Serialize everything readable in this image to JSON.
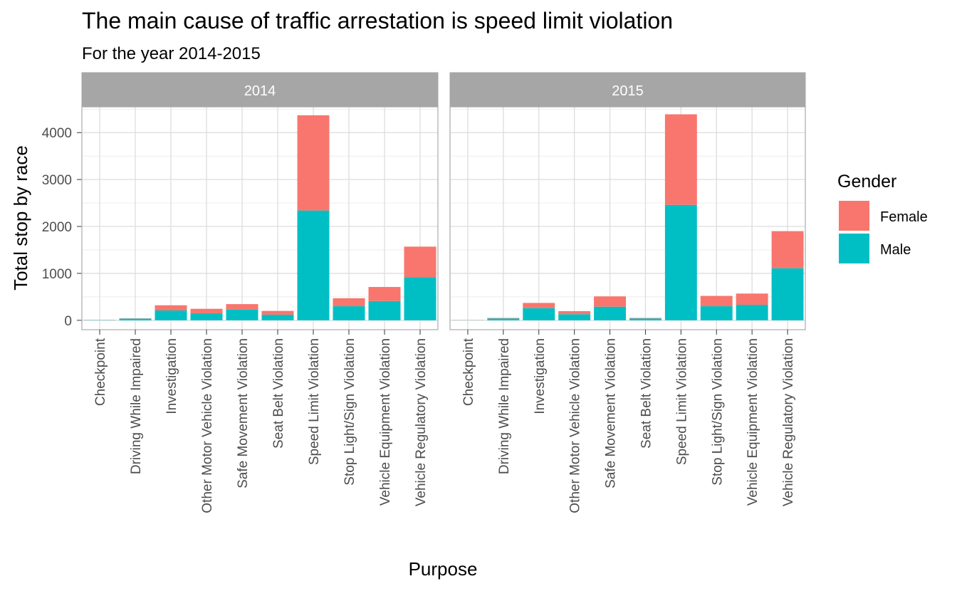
{
  "colors": {
    "female": "#F8766D",
    "male": "#00BFC4",
    "strip_bg": "#A6A6A6",
    "strip_text": "#ffffff",
    "grid_major": "#DDDDDD",
    "grid_minor": "#EEEEEE",
    "panel_border": "#B0B0B0",
    "text": "#000000",
    "axis_text": "#4D4D4D"
  },
  "chart_data": {
    "type": "bar",
    "stacked": true,
    "title": "The main cause of traffic arrestation is speed limit violation",
    "subtitle": "For the year 2014-2015",
    "xlabel": "Purpose",
    "ylabel": "Total stop by race",
    "ylim": [
      -200,
      4550
    ],
    "yticks": [
      0,
      1000,
      2000,
      3000,
      4000
    ],
    "grid": true,
    "legend": {
      "title": "Gender",
      "position": "right",
      "entries": [
        "Female",
        "Male"
      ]
    },
    "categories": [
      "Checkpoint",
      "Driving While Impaired",
      "Investigation",
      "Other Motor Vehicle Violation",
      "Safe Movement Violation",
      "Seat Belt Violation",
      "Speed Limit Violation",
      "Stop Light/Sign Violation",
      "Vehicle Equipment Violation",
      "Vehicle Regulatory Violation"
    ],
    "facets": [
      {
        "label": "2014",
        "series": [
          {
            "name": "Male",
            "values": [
              5,
              35,
              210,
              150,
              230,
              120,
              2340,
              300,
              410,
              920
            ]
          },
          {
            "name": "Female",
            "values": [
              2,
              5,
              110,
              95,
              115,
              80,
              2030,
              170,
              300,
              650
            ]
          }
        ]
      },
      {
        "label": "2015",
        "series": [
          {
            "name": "Male",
            "values": [
              3,
              40,
              260,
              130,
              290,
              40,
              2460,
              300,
              330,
              1110
            ]
          },
          {
            "name": "Female",
            "values": [
              2,
              10,
              110,
              65,
              220,
              10,
              1930,
              220,
              240,
              790
            ]
          }
        ]
      }
    ]
  }
}
